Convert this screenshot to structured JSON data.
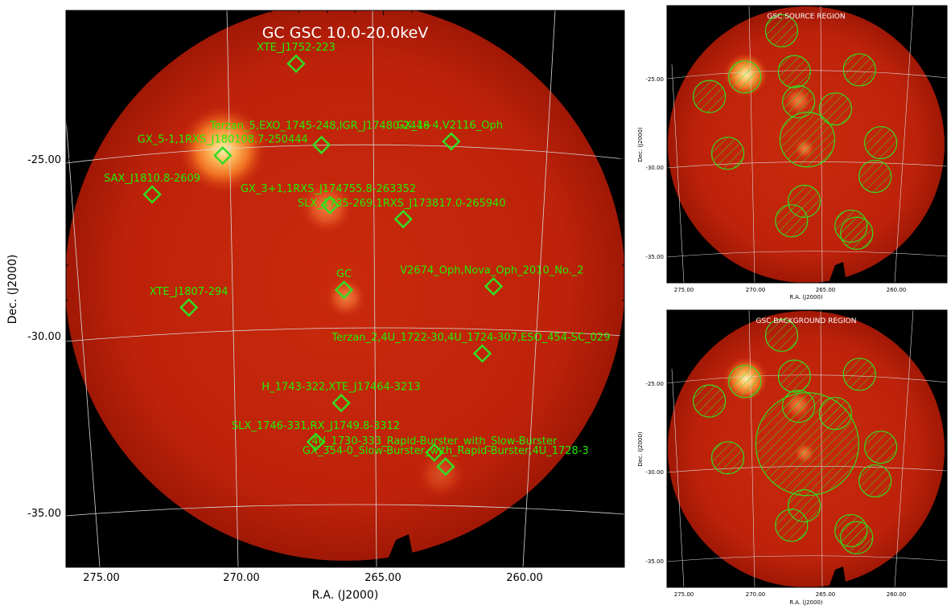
{
  "main": {
    "title": "GC GSC 10.0-20.0keV",
    "xlabel": "R.A. (J2000)",
    "ylabel": "Dec. (J2000)",
    "xticks": [
      "275.00",
      "270.00",
      "265.00",
      "260.00"
    ],
    "yticks": [
      "-25.00",
      "-30.00",
      "-35.00"
    ],
    "sources": [
      {
        "label": "XTE_J1752-223",
        "ra": 268.1,
        "dec": -22.3
      },
      {
        "label": "GX_5-1,1RXS_J180108.7-250444",
        "ra": 270.7,
        "dec": -24.9
      },
      {
        "label": "Terzan_5,EXO_1745-248,IGR_J17480-2446",
        "ra": 267.2,
        "dec": -24.6
      },
      {
        "label": "GX_1+4,V2116_Oph",
        "ra": 262.6,
        "dec": -24.5
      },
      {
        "label": "SAX_J1810.8-2609",
        "ra": 273.2,
        "dec": -26.0
      },
      {
        "label": "GX_3+1,1RXS_J174755.8-263352",
        "ra": 266.9,
        "dec": -26.3
      },
      {
        "label": "SLX_1735-269,1RXS_J173817.0-265940",
        "ra": 264.3,
        "dec": -26.7
      },
      {
        "label": "GC",
        "ra": 266.4,
        "dec": -28.7
      },
      {
        "label": "V2674_Oph,Nova_Oph_2010_No._2",
        "ra": 261.1,
        "dec": -28.6
      },
      {
        "label": "XTE_J1807-294",
        "ra": 271.9,
        "dec": -29.2
      },
      {
        "label": "Terzan_2,4U_1722-30,4U_1724-307,ESO_454-SC_029",
        "ra": 261.5,
        "dec": -30.5
      },
      {
        "label": "H_1743-322,XTE_J17464-3213",
        "ra": 266.5,
        "dec": -31.9
      },
      {
        "label": "SLX_1746-331,RX_J1749.8-3312",
        "ra": 267.4,
        "dec": -33.0
      },
      {
        "label": "4U_1730-333_Rapid-Burster_with_Slow-Burster",
        "ra": 263.2,
        "dec": -33.3
      },
      {
        "label": "GX_354-0_Slow-Burster_with_Rapid-Burster,4U_1728-3",
        "ra": 262.8,
        "dec": -33.7
      }
    ]
  },
  "source_panel": {
    "title": "GSC SOURCE REGION",
    "xlabel": "R.A. (J2000)",
    "ylabel": "Dec. (J2000)",
    "xticks": [
      "275.00",
      "270.00",
      "265.00",
      "260.00"
    ],
    "yticks": [
      "-25.00",
      "-30.00",
      "-35.00"
    ]
  },
  "background_panel": {
    "title": "GSC BACKGROUND REGION",
    "xlabel": "R.A. (J2000)",
    "ylabel": "Dec. (J2000)",
    "xticks": [
      "275.00",
      "270.00",
      "265.00",
      "260.00"
    ],
    "yticks": [
      "-25.00",
      "-30.00",
      "-35.00"
    ]
  },
  "colors": {
    "field": "#c2240a",
    "field_edge": "#a81a06",
    "hot": "#ffcf6a",
    "region": "#33dd22",
    "label": "#22ee00",
    "grid": "#cccccc",
    "panel_bg": "#000000"
  }
}
